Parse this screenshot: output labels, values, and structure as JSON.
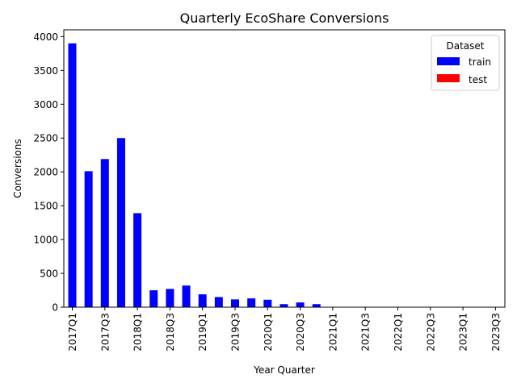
{
  "chart_data": {
    "type": "bar",
    "title": "Quarterly EcoShare Conversions",
    "xlabel": "Year Quarter",
    "ylabel": "Conversions",
    "ylim": [
      0,
      4100
    ],
    "yticks": [
      0,
      500,
      1000,
      1500,
      2000,
      2500,
      3000,
      3500,
      4000
    ],
    "grid": false,
    "categories": [
      "2017Q1",
      "2017Q2",
      "2017Q3",
      "2017Q4",
      "2018Q1",
      "2018Q2",
      "2018Q3",
      "2018Q4",
      "2019Q1",
      "2019Q2",
      "2019Q3",
      "2019Q4",
      "2020Q1",
      "2020Q2",
      "2020Q3",
      "2020Q4",
      "2021Q1",
      "2021Q2",
      "2021Q3",
      "2021Q4",
      "2022Q1",
      "2022Q2",
      "2022Q3",
      "2022Q4",
      "2023Q1",
      "2023Q2",
      "2023Q3"
    ],
    "tick_labels_shown": [
      "2017Q1",
      "2017Q3",
      "2018Q1",
      "2018Q3",
      "2019Q1",
      "2019Q3",
      "2020Q1",
      "2020Q3",
      "2021Q1",
      "2021Q3",
      "2022Q1",
      "2022Q3",
      "2023Q1",
      "2023Q3"
    ],
    "series": [
      {
        "name": "train",
        "color": "#0000ff",
        "values": [
          3900,
          2010,
          2190,
          2500,
          1390,
          250,
          270,
          320,
          190,
          150,
          115,
          130,
          110,
          45,
          70,
          45,
          0,
          0,
          0,
          0,
          0,
          0,
          0,
          0,
          0,
          0,
          0
        ]
      },
      {
        "name": "test",
        "color": "#ff0000",
        "values": [
          0,
          0,
          0,
          0,
          0,
          0,
          0,
          0,
          0,
          0,
          0,
          0,
          0,
          0,
          0,
          0,
          0,
          0,
          0,
          0,
          0,
          0,
          0,
          0,
          0,
          0,
          0
        ]
      }
    ],
    "legend": {
      "title": "Dataset",
      "placement": "top-right"
    }
  }
}
